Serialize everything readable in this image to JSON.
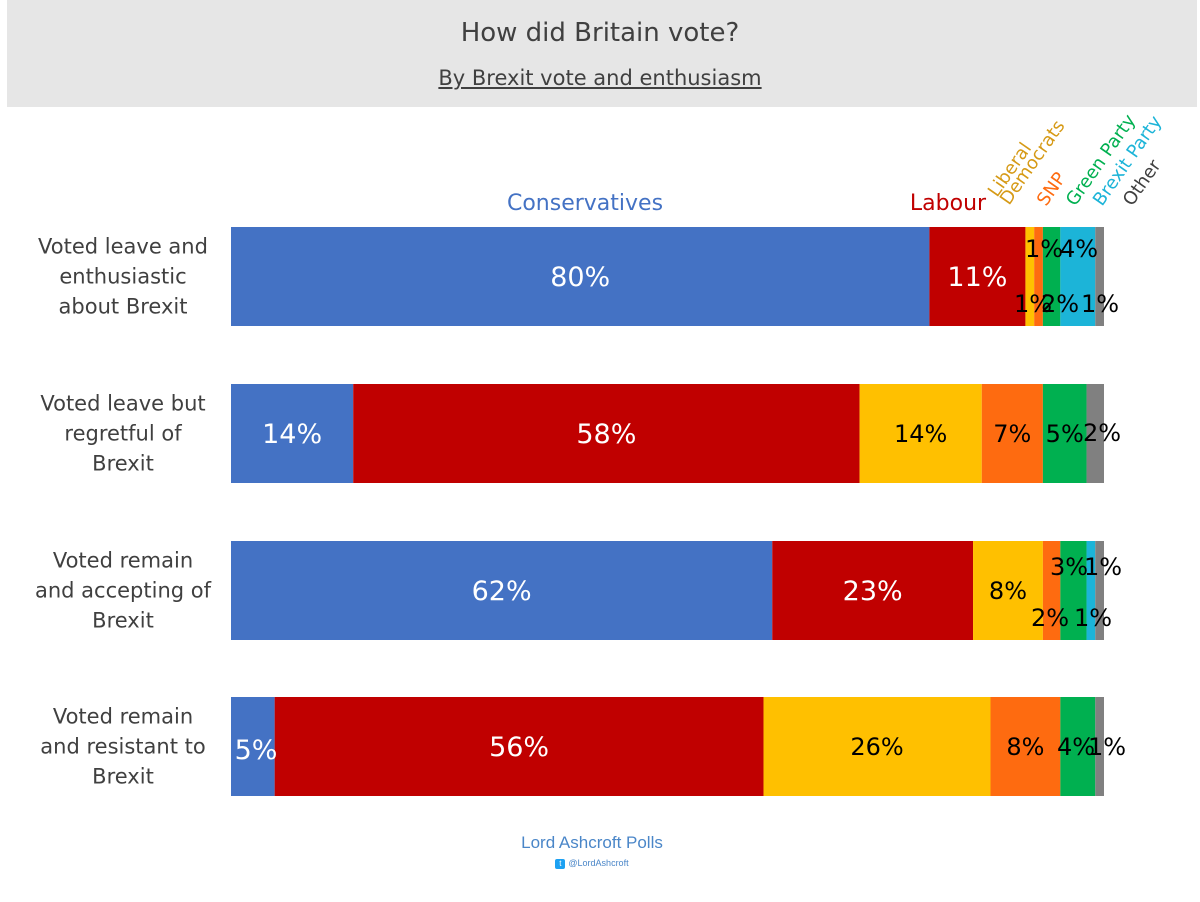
{
  "header": {
    "title": "How did Britain vote?",
    "subtitle": "By Brexit vote and enthusiasm"
  },
  "footer": {
    "source": "Lord Ashcroft Polls",
    "handle": "@LordAshcroft",
    "icon": "twitter-icon"
  },
  "chart_data": {
    "type": "bar",
    "orientation": "horizontal",
    "stacked": true,
    "title": "How did Britain vote?",
    "subtitle": "By Brexit vote and enthusiasm",
    "unit": "%",
    "xlim": [
      0,
      100
    ],
    "categories": [
      "Voted leave and enthusiastic about Brexit",
      "Voted leave but regretful of Brexit",
      "Voted remain and accepting of Brexit",
      "Voted remain and resistant to Brexit"
    ],
    "category_lines": [
      [
        "Voted leave and",
        "enthusiastic",
        "about Brexit"
      ],
      [
        "Voted leave but",
        "regretful of",
        "Brexit"
      ],
      [
        "Voted remain",
        "and accepting of",
        "Brexit"
      ],
      [
        "Voted remain",
        "and resistant to",
        "Brexit"
      ]
    ],
    "series": [
      {
        "name": "Conservatives",
        "legend": [
          "Conservatives"
        ],
        "color": "#4472c4",
        "values": [
          80,
          14,
          62,
          5
        ]
      },
      {
        "name": "Labour",
        "legend": [
          "Labour"
        ],
        "color": "#c00000",
        "values": [
          11,
          58,
          23,
          56
        ]
      },
      {
        "name": "Liberal Democrats",
        "legend": [
          "Liberal",
          "Democrats"
        ],
        "color": "#ffc000",
        "legend_color": "#d69a16",
        "values": [
          1,
          14,
          8,
          26
        ]
      },
      {
        "name": "SNP",
        "legend": [
          "SNP"
        ],
        "color": "#fe6b10",
        "values": [
          1,
          7,
          2,
          8
        ]
      },
      {
        "name": "Green Party",
        "legend": [
          "Green Party"
        ],
        "color": "#00b050",
        "values": [
          2,
          5,
          3,
          4
        ]
      },
      {
        "name": "Brexit Party",
        "legend": [
          "Brexit Party"
        ],
        "color": "#1cb4d8",
        "values": [
          4,
          0,
          1,
          0
        ]
      },
      {
        "name": "Other",
        "legend": [
          "Other"
        ],
        "color": "#808080",
        "legend_color": "#404040",
        "values": [
          1,
          2,
          1,
          1
        ]
      }
    ],
    "data_labels": [
      [
        "80%",
        "11%",
        "1%",
        "1%",
        "2%",
        "4%",
        "1%"
      ],
      [
        "14%",
        "58%",
        "14%",
        "7%",
        "5%",
        "",
        "2%"
      ],
      [
        "62%",
        "23%",
        "8%",
        "2%",
        "3%",
        "1%",
        "1%"
      ],
      [
        "5%",
        "56%",
        "26%",
        "8%",
        "4%",
        "",
        "1%"
      ]
    ]
  }
}
